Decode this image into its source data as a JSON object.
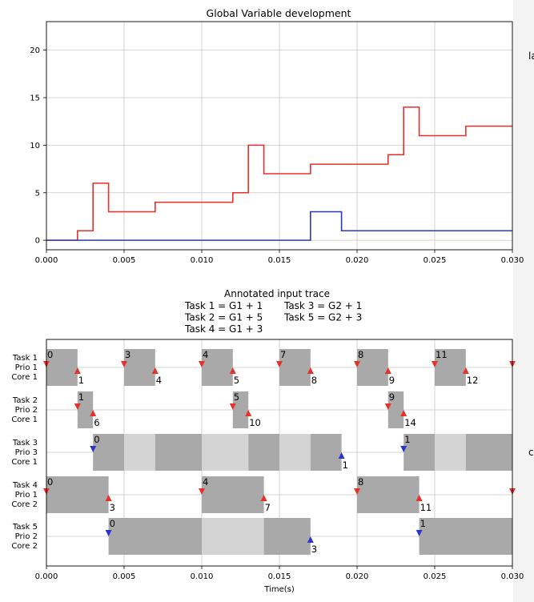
{
  "chart_data": [
    {
      "type": "line",
      "title": "Global Variable development",
      "xlabel": "",
      "ylabel": "",
      "xlim": [
        0,
        0.03
      ],
      "ylim": [
        -1,
        23
      ],
      "grid": true,
      "xticks": [
        "0.000",
        "0.005",
        "0.010",
        "0.015",
        "0.020",
        "0.025",
        "0.030"
      ],
      "yticks": [
        "0",
        "5",
        "10",
        "15",
        "20"
      ],
      "series": [
        {
          "color": "#e8302a",
          "x": [
            0,
            0.002,
            0.003,
            0.004,
            0.007,
            0.012,
            0.013,
            0.014,
            0.017,
            0.022,
            0.023,
            0.024,
            0.027,
            0.03
          ],
          "y": [
            0,
            1,
            6,
            3,
            4,
            5,
            10,
            7,
            8,
            9,
            14,
            11,
            12,
            12
          ]
        },
        {
          "color": "#2a35cc",
          "x": [
            0,
            0.017,
            0.019,
            0.03
          ],
          "y": [
            0,
            3,
            1,
            1
          ]
        }
      ]
    },
    {
      "type": "table",
      "title": "Annotated input trace",
      "legend_lines": [
        "Task 1 = G1 + 1       Task 3 = G2 + 1",
        "Task 2 = G1 + 5       Task 5 = G2 + 3",
        "Task 4 = G1 + 3"
      ],
      "xlabel": "Time(s)",
      "xlim": [
        0,
        0.03
      ],
      "xticks": [
        "0.000",
        "0.005",
        "0.010",
        "0.015",
        "0.020",
        "0.025",
        "0.030"
      ],
      "tasks": [
        {
          "name": "Task 1",
          "prio": "Prio 1",
          "core": "Core 1",
          "segments": [
            [
              0,
              0.002,
              "d"
            ],
            [
              0.005,
              0.007,
              "d"
            ],
            [
              0.01,
              0.012,
              "d"
            ],
            [
              0.015,
              0.017,
              "d"
            ],
            [
              0.02,
              0.022,
              "d"
            ],
            [
              0.025,
              0.027,
              "d"
            ]
          ],
          "starts": [
            [
              0,
              "0"
            ],
            [
              0.005,
              "3"
            ],
            [
              0.01,
              "4"
            ],
            [
              0.015,
              "7"
            ],
            [
              0.02,
              "8"
            ],
            [
              0.025,
              "11"
            ],
            [
              0.03,
              ""
            ]
          ],
          "ends": [
            [
              0.002,
              "1"
            ],
            [
              0.007,
              "4"
            ],
            [
              0.012,
              "5"
            ],
            [
              0.017,
              "8"
            ],
            [
              0.022,
              "9"
            ],
            [
              0.027,
              "12"
            ]
          ],
          "color": "#e8302a"
        },
        {
          "name": "Task 2",
          "prio": "Prio 2",
          "core": "Core 1",
          "segments": [
            [
              0.002,
              0.003,
              "d"
            ],
            [
              0.012,
              0.013,
              "d"
            ],
            [
              0.022,
              0.023,
              "d"
            ]
          ],
          "starts": [
            [
              0.002,
              "1"
            ],
            [
              0.012,
              "5"
            ],
            [
              0.022,
              "9"
            ]
          ],
          "ends": [
            [
              0.003,
              "6"
            ],
            [
              0.013,
              "10"
            ],
            [
              0.023,
              "14"
            ]
          ],
          "color": "#e8302a"
        },
        {
          "name": "Task 3",
          "prio": "Prio 3",
          "core": "Core 1",
          "segments": [
            [
              0.003,
              0.005,
              "d"
            ],
            [
              0.005,
              0.007,
              "l"
            ],
            [
              0.007,
              0.01,
              "d"
            ],
            [
              0.01,
              0.013,
              "l"
            ],
            [
              0.013,
              0.015,
              "d"
            ],
            [
              0.015,
              0.017,
              "l"
            ],
            [
              0.017,
              0.019,
              "d"
            ],
            [
              0.023,
              0.025,
              "d"
            ],
            [
              0.025,
              0.027,
              "l"
            ],
            [
              0.027,
              0.03,
              "d"
            ]
          ],
          "starts": [
            [
              0.003,
              "0"
            ],
            [
              0.023,
              "1"
            ]
          ],
          "ends": [
            [
              0.019,
              "1"
            ]
          ],
          "color": "#2a35cc"
        },
        {
          "name": "Task 4",
          "prio": "Prio 1",
          "core": "Core 2",
          "segments": [
            [
              0,
              0.004,
              "d"
            ],
            [
              0.01,
              0.014,
              "d"
            ],
            [
              0.02,
              0.024,
              "d"
            ]
          ],
          "starts": [
            [
              0,
              "0"
            ],
            [
              0.01,
              "4"
            ],
            [
              0.02,
              "8"
            ],
            [
              0.03,
              ""
            ]
          ],
          "ends": [
            [
              0.004,
              "3"
            ],
            [
              0.014,
              "7"
            ],
            [
              0.024,
              "11"
            ]
          ],
          "color": "#e8302a"
        },
        {
          "name": "Task 5",
          "prio": "Prio 2",
          "core": "Core 2",
          "segments": [
            [
              0.004,
              0.01,
              "d"
            ],
            [
              0.01,
              0.014,
              "l"
            ],
            [
              0.014,
              0.017,
              "d"
            ],
            [
              0.024,
              0.03,
              "d"
            ]
          ],
          "starts": [
            [
              0.004,
              "0"
            ],
            [
              0.024,
              "1"
            ]
          ],
          "ends": [
            [
              0.017,
              "3"
            ]
          ],
          "color": "#2a35cc"
        }
      ]
    }
  ],
  "edge_fragments": {
    "right_top": "la",
    "right_mid": "c"
  }
}
